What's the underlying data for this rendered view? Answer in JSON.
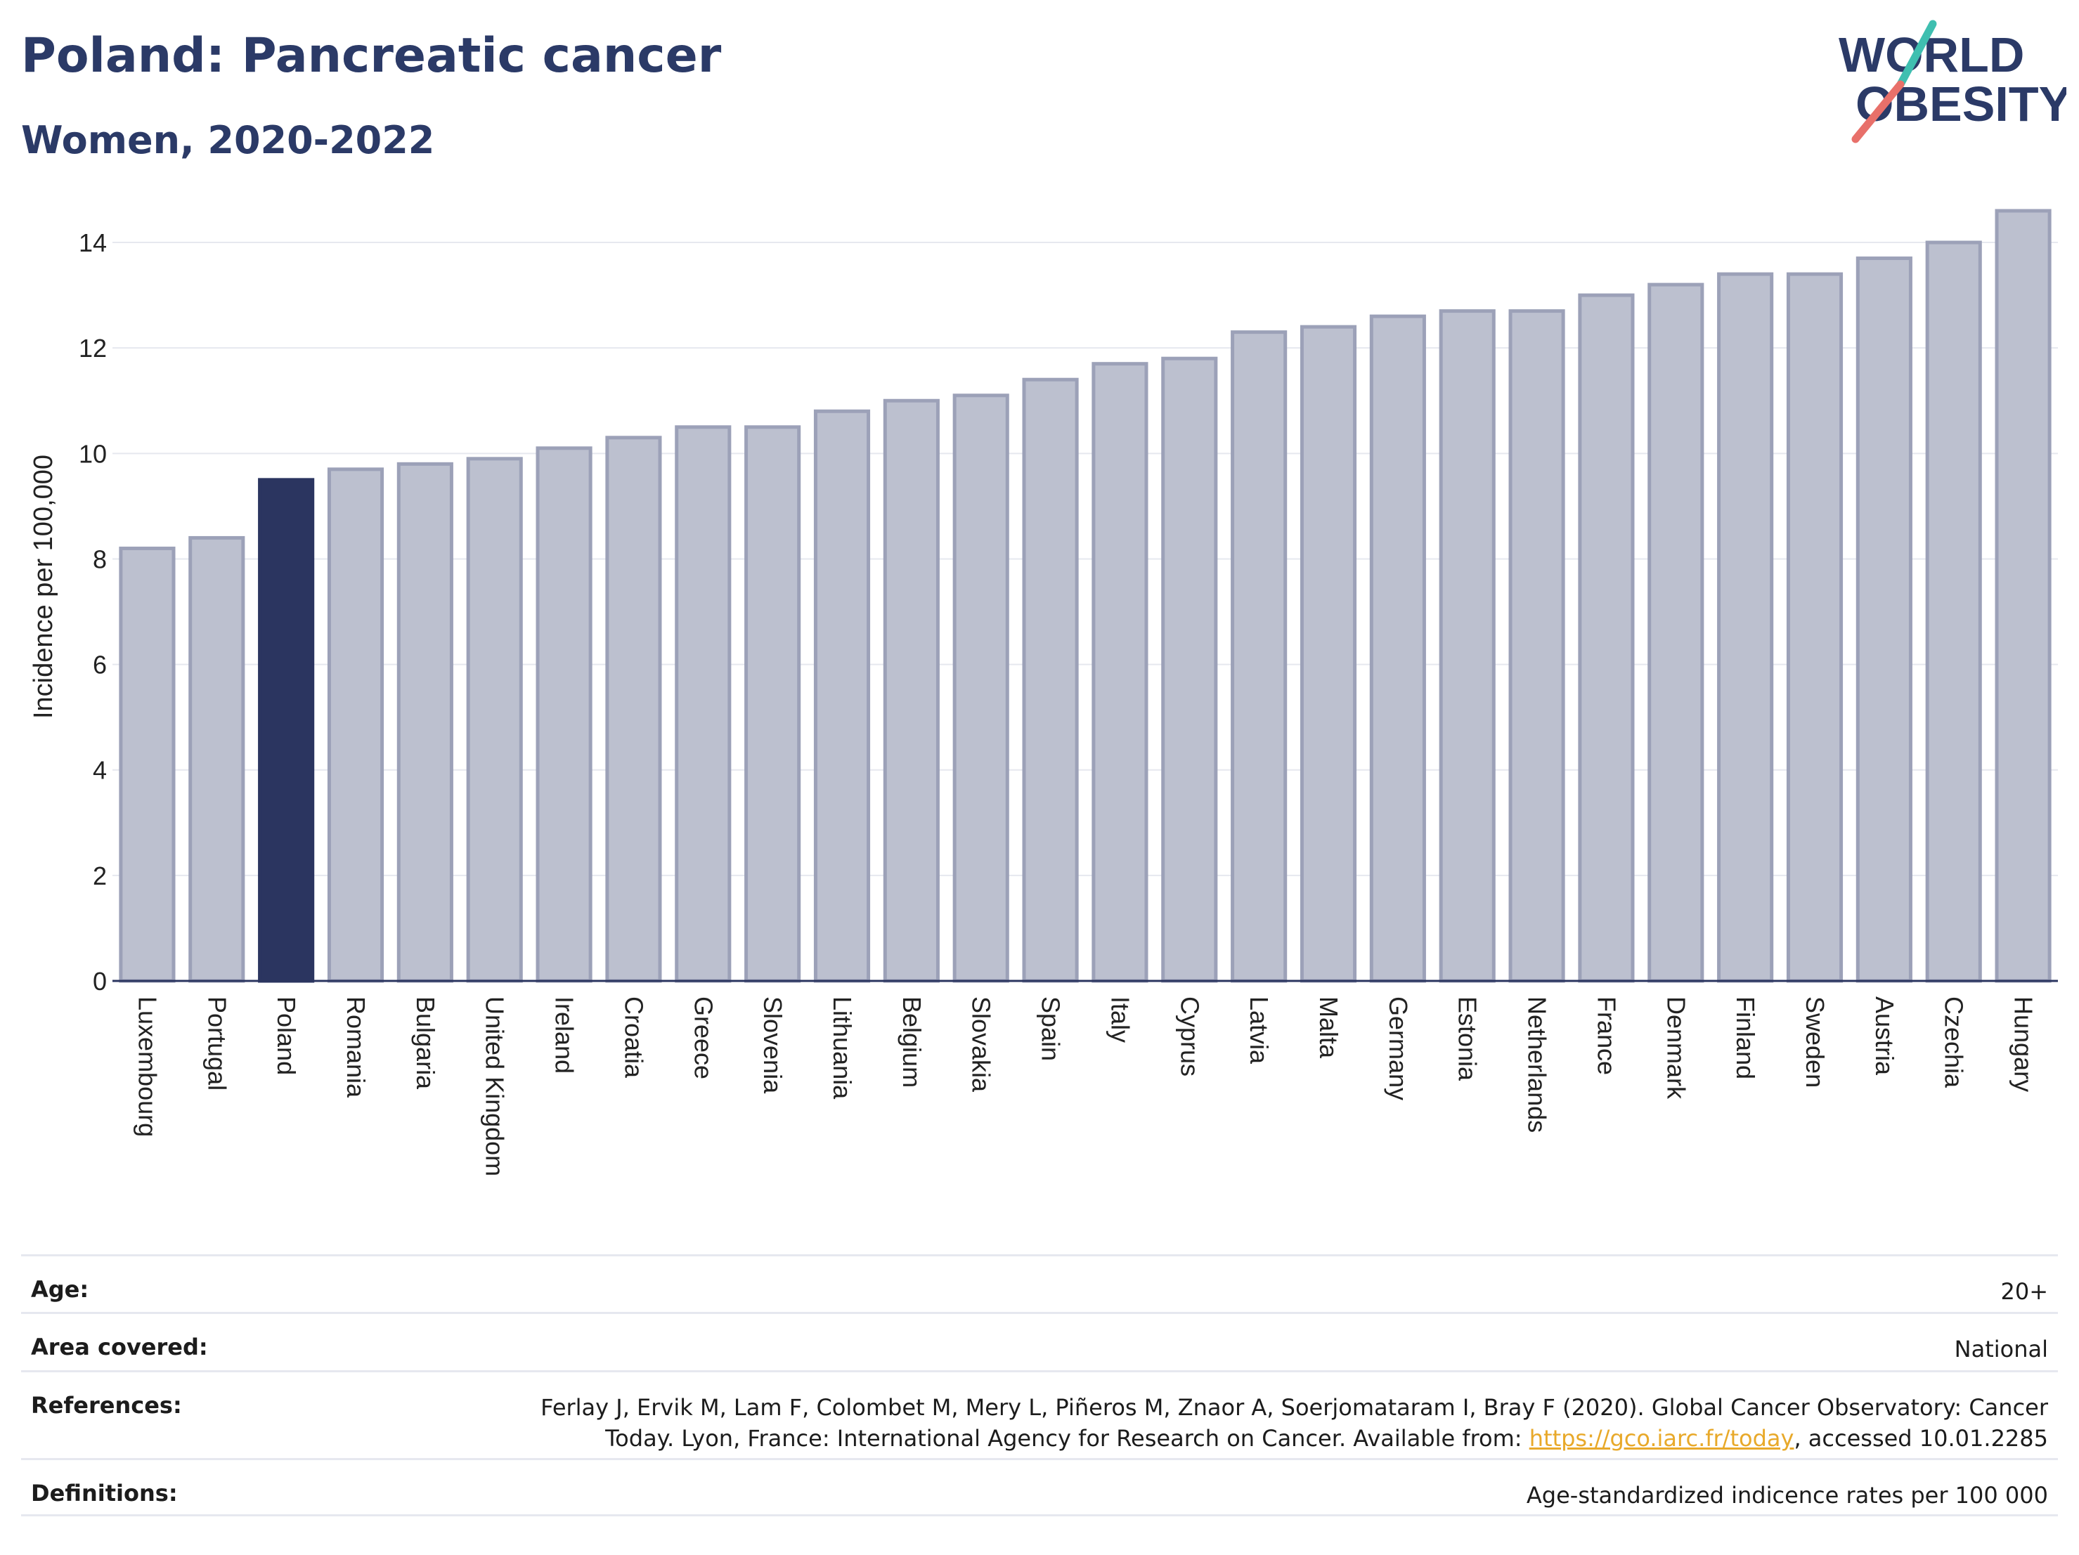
{
  "header": {
    "title": "Poland: Pancreatic cancer",
    "subtitle": "Women, 2020-2022"
  },
  "logo": {
    "line1": "WORLD",
    "line2": "OBESITY"
  },
  "colors": {
    "highlight_bar": "#2b3560",
    "default_bar_fill": "#bcc0cf",
    "default_bar_stroke": "#9ca1b8",
    "axis_text": "#222222",
    "logo_navy": "#2b3a67",
    "logo_teal": "#3fbfb0",
    "logo_coral": "#e8706a",
    "link": "#e8a92a"
  },
  "chart_data": {
    "type": "bar",
    "ylabel": "Incidence per 100,000",
    "ylim": [
      0,
      14.6
    ],
    "yticks": [
      0,
      2,
      4,
      6,
      8,
      10,
      12,
      14
    ],
    "grid": true,
    "highlight": "Poland",
    "categories": [
      "Luxembourg",
      "Portugal",
      "Poland",
      "Romania",
      "Bulgaria",
      "United Kingdom",
      "Ireland",
      "Croatia",
      "Greece",
      "Slovenia",
      "Lithuania",
      "Belgium",
      "Slovakia",
      "Spain",
      "Italy",
      "Cyprus",
      "Latvia",
      "Malta",
      "Germany",
      "Estonia",
      "Netherlands",
      "France",
      "Denmark",
      "Finland",
      "Sweden",
      "Austria",
      "Czechia",
      "Hungary"
    ],
    "values": [
      8.2,
      8.4,
      9.5,
      9.7,
      9.8,
      9.9,
      10.1,
      10.3,
      10.5,
      10.5,
      10.8,
      11.0,
      11.1,
      11.4,
      11.7,
      11.8,
      12.3,
      12.4,
      12.6,
      12.7,
      12.7,
      13.0,
      13.2,
      13.4,
      13.4,
      13.7,
      14.0,
      14.6
    ]
  },
  "meta": {
    "age_label": "Age:",
    "age_value": "20+",
    "area_label": "Area covered:",
    "area_value": "National",
    "references_label": "References:",
    "references_text_1": "Ferlay J, Ervik M, Lam F, Colombet M, Mery L, Piñeros M, Znaor A, Soerjomataram I, Bray F (2020). Global Cancer Observatory: Cancer",
    "references_text_2": "Today. Lyon, France: International Agency for Research on Cancer. Available from: ",
    "references_link": "https://gco.iarc.fr/today",
    "references_text_3": ", accessed 10.01.2285",
    "definitions_label": "Definitions:",
    "definitions_value": "Age-standardized indicence rates per 100 000"
  }
}
